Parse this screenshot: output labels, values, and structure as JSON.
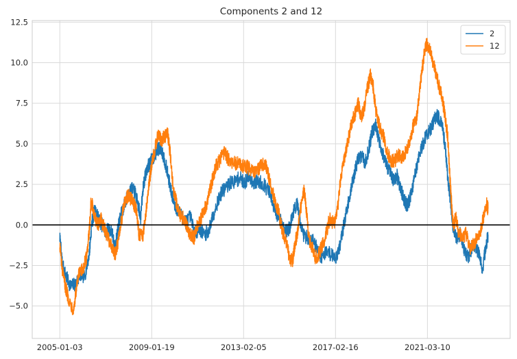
{
  "chart_data": {
    "type": "line",
    "title": "Components 2 and 12",
    "xlabel": "",
    "ylabel": "",
    "x_ticks": [
      "2005-01-03",
      "2009-01-19",
      "2013-02-05",
      "2017-02-16",
      "2021-03-10"
    ],
    "x_tick_positions": [
      0,
      1,
      2,
      3,
      4
    ],
    "xlim": [
      -0.3,
      4.9
    ],
    "ylim": [
      -7.0,
      12.6
    ],
    "y_ticks": [
      -5.0,
      -2.5,
      0.0,
      2.5,
      5.0,
      7.5,
      10.0,
      12.5
    ],
    "y_tick_labels": [
      "−5.0",
      "−2.5",
      "0.0",
      "2.5",
      "5.0",
      "7.5",
      "10.0",
      "12.5"
    ],
    "grid": true,
    "legend_position": "top-right",
    "reference_line": {
      "y": 0,
      "color": "#000000"
    },
    "series": [
      {
        "name": "2",
        "color": "#1f77b4",
        "anchors": [
          [
            0.0,
            -0.8
          ],
          [
            0.03,
            -2.5
          ],
          [
            0.07,
            -3.2
          ],
          [
            0.12,
            -3.8
          ],
          [
            0.18,
            -3.6
          ],
          [
            0.22,
            -3.0
          ],
          [
            0.27,
            -3.2
          ],
          [
            0.32,
            -1.8
          ],
          [
            0.35,
            0.2
          ],
          [
            0.38,
            0.9
          ],
          [
            0.42,
            0.4
          ],
          [
            0.46,
            0.0
          ],
          [
            0.5,
            -0.5
          ],
          [
            0.53,
            -0.2
          ],
          [
            0.57,
            -0.5
          ],
          [
            0.6,
            -1.5
          ],
          [
            0.63,
            -0.3
          ],
          [
            0.66,
            0.5
          ],
          [
            0.7,
            1.2
          ],
          [
            0.74,
            1.8
          ],
          [
            0.78,
            2.2
          ],
          [
            0.82,
            2.0
          ],
          [
            0.86,
            1.0
          ],
          [
            0.88,
            0.5
          ],
          [
            0.91,
            2.5
          ],
          [
            0.95,
            3.5
          ],
          [
            0.98,
            3.8
          ],
          [
            1.02,
            4.2
          ],
          [
            1.06,
            4.6
          ],
          [
            1.1,
            4.8
          ],
          [
            1.14,
            4.0
          ],
          [
            1.18,
            3.0
          ],
          [
            1.22,
            1.8
          ],
          [
            1.27,
            1.0
          ],
          [
            1.32,
            0.6
          ],
          [
            1.37,
            0.2
          ],
          [
            1.42,
            0.5
          ],
          [
            1.47,
            -0.5
          ],
          [
            1.52,
            -0.2
          ],
          [
            1.57,
            -0.6
          ],
          [
            1.62,
            -0.4
          ],
          [
            1.66,
            0.5
          ],
          [
            1.71,
            1.3
          ],
          [
            1.76,
            2.0
          ],
          [
            1.81,
            2.3
          ],
          [
            1.86,
            2.6
          ],
          [
            1.91,
            2.7
          ],
          [
            1.96,
            2.9
          ],
          [
            2.01,
            2.6
          ],
          [
            2.06,
            3.0
          ],
          [
            2.11,
            2.6
          ],
          [
            2.16,
            2.7
          ],
          [
            2.22,
            2.5
          ],
          [
            2.28,
            2.0
          ],
          [
            2.32,
            1.2
          ],
          [
            2.36,
            0.6
          ],
          [
            2.41,
            0.3
          ],
          [
            2.46,
            -0.4
          ],
          [
            2.5,
            -0.2
          ],
          [
            2.54,
            0.8
          ],
          [
            2.58,
            1.3
          ],
          [
            2.61,
            0.4
          ],
          [
            2.65,
            -0.6
          ],
          [
            2.7,
            -0.8
          ],
          [
            2.76,
            -1.0
          ],
          [
            2.8,
            -1.5
          ],
          [
            2.85,
            -2.0
          ],
          [
            2.9,
            -1.6
          ],
          [
            2.95,
            -1.8
          ],
          [
            3.0,
            -2.0
          ],
          [
            3.04,
            -1.5
          ],
          [
            3.08,
            -0.3
          ],
          [
            3.12,
            0.8
          ],
          [
            3.16,
            2.0
          ],
          [
            3.2,
            3.0
          ],
          [
            3.24,
            4.0
          ],
          [
            3.28,
            4.3
          ],
          [
            3.32,
            3.8
          ],
          [
            3.36,
            4.6
          ],
          [
            3.4,
            5.8
          ],
          [
            3.44,
            6.2
          ],
          [
            3.47,
            5.2
          ],
          [
            3.51,
            4.5
          ],
          [
            3.55,
            3.8
          ],
          [
            3.59,
            3.2
          ],
          [
            3.63,
            2.8
          ],
          [
            3.67,
            3.0
          ],
          [
            3.71,
            2.2
          ],
          [
            3.75,
            1.5
          ],
          [
            3.78,
            1.2
          ],
          [
            3.82,
            1.8
          ],
          [
            3.86,
            3.0
          ],
          [
            3.9,
            4.0
          ],
          [
            3.94,
            4.8
          ],
          [
            3.98,
            5.5
          ],
          [
            4.02,
            5.8
          ],
          [
            4.06,
            6.2
          ],
          [
            4.1,
            6.8
          ],
          [
            4.13,
            6.5
          ],
          [
            4.17,
            5.8
          ],
          [
            4.2,
            4.5
          ],
          [
            4.22,
            3.0
          ],
          [
            4.25,
            1.5
          ],
          [
            4.28,
            -0.2
          ],
          [
            4.32,
            -0.8
          ],
          [
            4.36,
            -0.5
          ],
          [
            4.4,
            -1.5
          ],
          [
            4.44,
            -2.0
          ],
          [
            4.48,
            -1.5
          ],
          [
            4.52,
            -1.2
          ],
          [
            4.56,
            -1.8
          ],
          [
            4.6,
            -2.8
          ],
          [
            4.63,
            -1.5
          ],
          [
            4.66,
            -0.6
          ]
        ]
      },
      {
        "name": "12",
        "color": "#ff7f0e",
        "anchors": [
          [
            0.0,
            -1.2
          ],
          [
            0.03,
            -3.0
          ],
          [
            0.07,
            -4.0
          ],
          [
            0.11,
            -4.8
          ],
          [
            0.15,
            -5.2
          ],
          [
            0.18,
            -4.0
          ],
          [
            0.21,
            -3.0
          ],
          [
            0.25,
            -2.8
          ],
          [
            0.29,
            -2.0
          ],
          [
            0.32,
            -0.5
          ],
          [
            0.34,
            1.5
          ],
          [
            0.37,
            0.8
          ],
          [
            0.41,
            0.0
          ],
          [
            0.45,
            0.3
          ],
          [
            0.49,
            -0.3
          ],
          [
            0.53,
            -0.8
          ],
          [
            0.57,
            -1.5
          ],
          [
            0.61,
            -1.8
          ],
          [
            0.64,
            -0.8
          ],
          [
            0.67,
            0.3
          ],
          [
            0.71,
            1.5
          ],
          [
            0.75,
            1.8
          ],
          [
            0.79,
            1.5
          ],
          [
            0.83,
            1.0
          ],
          [
            0.86,
            -0.5
          ],
          [
            0.9,
            -0.8
          ],
          [
            0.93,
            0.5
          ],
          [
            0.97,
            2.5
          ],
          [
            1.0,
            3.8
          ],
          [
            1.04,
            4.8
          ],
          [
            1.07,
            5.6
          ],
          [
            1.1,
            5.2
          ],
          [
            1.14,
            5.4
          ],
          [
            1.17,
            5.8
          ],
          [
            1.2,
            4.5
          ],
          [
            1.23,
            2.5
          ],
          [
            1.27,
            1.3
          ],
          [
            1.31,
            0.6
          ],
          [
            1.36,
            0.3
          ],
          [
            1.41,
            -0.5
          ],
          [
            1.46,
            -0.8
          ],
          [
            1.5,
            0.0
          ],
          [
            1.54,
            0.5
          ],
          [
            1.58,
            1.0
          ],
          [
            1.62,
            1.8
          ],
          [
            1.66,
            2.8
          ],
          [
            1.7,
            3.6
          ],
          [
            1.74,
            4.0
          ],
          [
            1.79,
            4.5
          ],
          [
            1.84,
            4.0
          ],
          [
            1.89,
            3.8
          ],
          [
            1.94,
            3.8
          ],
          [
            1.99,
            3.6
          ],
          [
            2.04,
            3.6
          ],
          [
            2.09,
            3.3
          ],
          [
            2.14,
            3.2
          ],
          [
            2.19,
            3.7
          ],
          [
            2.24,
            3.8
          ],
          [
            2.29,
            2.5
          ],
          [
            2.34,
            1.5
          ],
          [
            2.38,
            0.8
          ],
          [
            2.42,
            -0.3
          ],
          [
            2.46,
            -1.0
          ],
          [
            2.5,
            -2.0
          ],
          [
            2.53,
            -2.3
          ],
          [
            2.56,
            -1.2
          ],
          [
            2.59,
            -0.3
          ],
          [
            2.62,
            1.0
          ],
          [
            2.66,
            2.2
          ],
          [
            2.68,
            1.0
          ],
          [
            2.71,
            -0.8
          ],
          [
            2.75,
            -1.5
          ],
          [
            2.78,
            -2.0
          ],
          [
            2.82,
            -1.8
          ],
          [
            2.86,
            -1.2
          ],
          [
            2.9,
            -0.5
          ],
          [
            2.94,
            0.5
          ],
          [
            2.98,
            0.0
          ],
          [
            3.02,
            0.8
          ],
          [
            3.05,
            2.5
          ],
          [
            3.09,
            4.0
          ],
          [
            3.13,
            5.0
          ],
          [
            3.17,
            6.2
          ],
          [
            3.21,
            6.8
          ],
          [
            3.25,
            7.5
          ],
          [
            3.28,
            6.5
          ],
          [
            3.31,
            7.2
          ],
          [
            3.35,
            8.5
          ],
          [
            3.38,
            9.2
          ],
          [
            3.41,
            8.5
          ],
          [
            3.44,
            7.0
          ],
          [
            3.48,
            6.0
          ],
          [
            3.52,
            5.5
          ],
          [
            3.56,
            4.5
          ],
          [
            3.6,
            4.0
          ],
          [
            3.64,
            3.9
          ],
          [
            3.68,
            4.3
          ],
          [
            3.72,
            4.1
          ],
          [
            3.76,
            4.5
          ],
          [
            3.8,
            5.0
          ],
          [
            3.84,
            6.0
          ],
          [
            3.88,
            6.5
          ],
          [
            3.91,
            8.0
          ],
          [
            3.94,
            9.5
          ],
          [
            3.97,
            10.8
          ],
          [
            4.0,
            11.2
          ],
          [
            4.04,
            10.5
          ],
          [
            4.07,
            9.8
          ],
          [
            4.1,
            9.2
          ],
          [
            4.13,
            8.5
          ],
          [
            4.16,
            7.8
          ],
          [
            4.19,
            6.8
          ],
          [
            4.22,
            5.5
          ],
          [
            4.24,
            3.5
          ],
          [
            4.26,
            1.5
          ],
          [
            4.28,
            0.0
          ],
          [
            4.31,
            0.4
          ],
          [
            4.34,
            -0.5
          ],
          [
            4.38,
            -0.8
          ],
          [
            4.42,
            -0.5
          ],
          [
            4.46,
            -1.5
          ],
          [
            4.5,
            -1.2
          ],
          [
            4.54,
            -0.8
          ],
          [
            4.58,
            -0.3
          ],
          [
            4.61,
            0.5
          ],
          [
            4.64,
            1.3
          ],
          [
            4.66,
            1.0
          ]
        ]
      }
    ]
  }
}
